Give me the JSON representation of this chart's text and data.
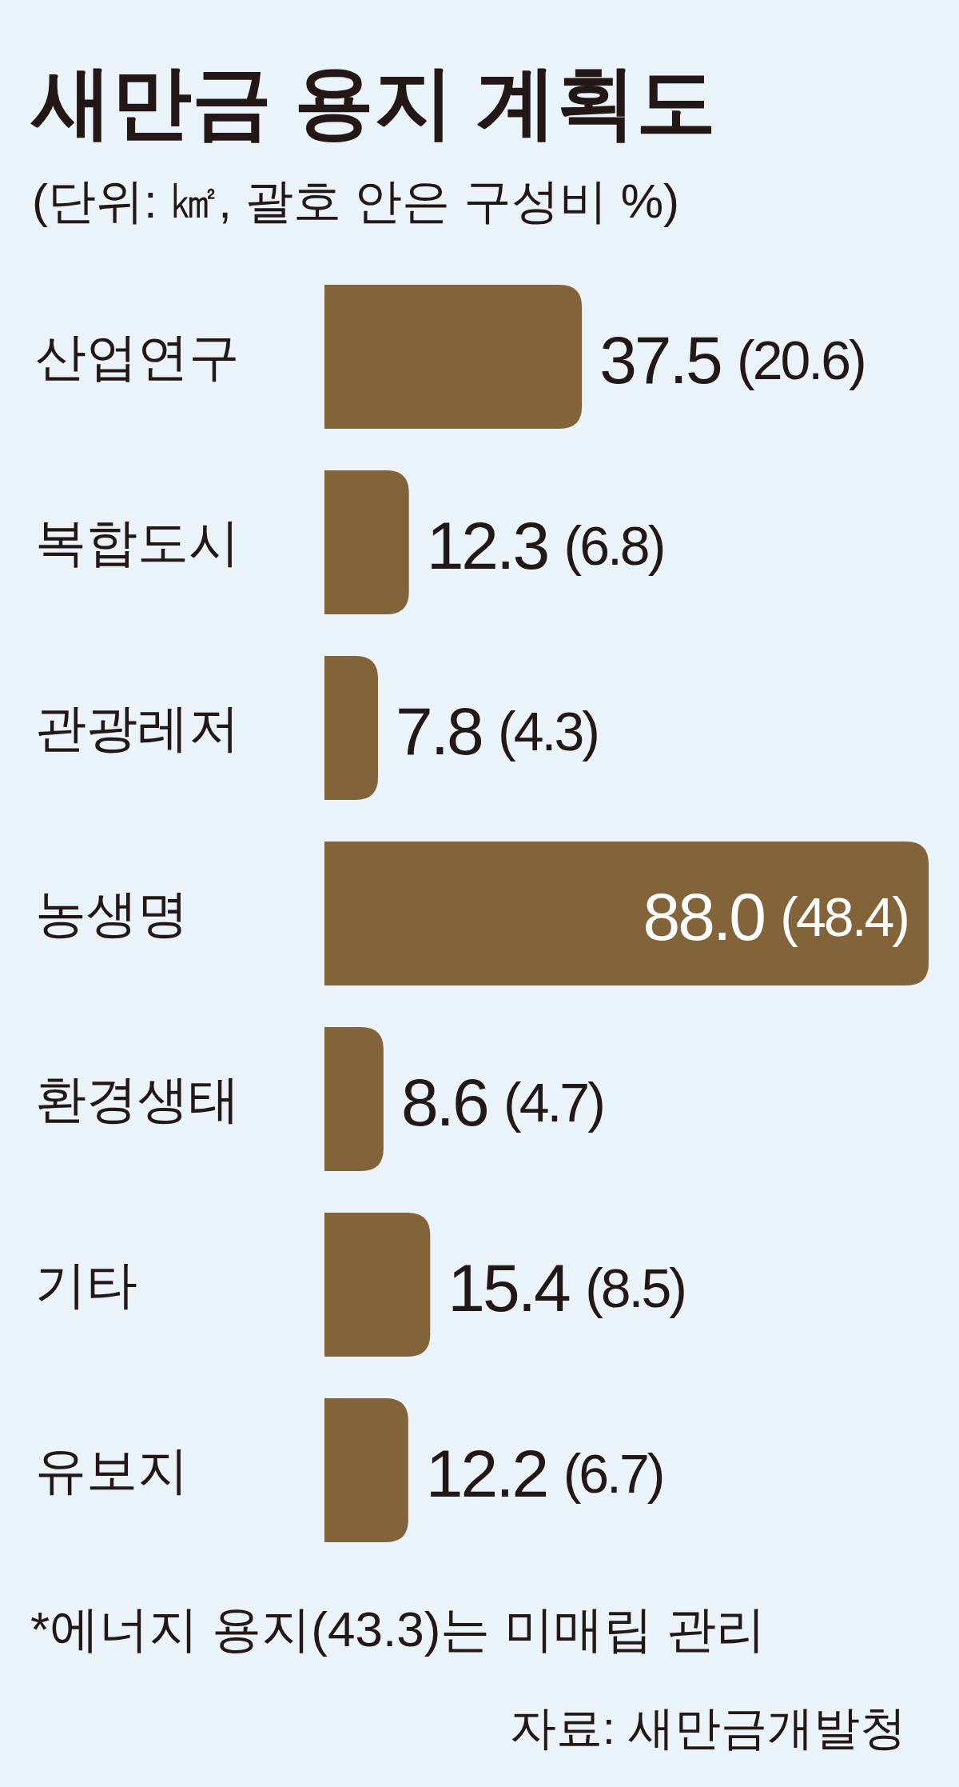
{
  "chart_data": {
    "type": "bar",
    "orientation": "horizontal",
    "title": "새만금 용지 계획도",
    "subtitle": "(단위: ㎢, 괄호 안은 구성비 %)",
    "categories": [
      "산업연구",
      "복합도시",
      "관광레저",
      "농생명",
      "환경생태",
      "기타",
      "유보지"
    ],
    "values": [
      37.5,
      12.3,
      7.8,
      88.0,
      8.6,
      15.4,
      12.2
    ],
    "value_labels": [
      "37.5 (20.6)",
      "12.3 (6.8)",
      "7.8 (4.3)",
      "88.0 (48.4)",
      "8.6 (4.7)",
      "15.4 (8.5)",
      "12.2 (6.7)"
    ],
    "color": "#83643a",
    "annotations": [
      "*에너지 용지(43.3)는 미매립 관리",
      "자료: 새만금개발청"
    ]
  }
}
